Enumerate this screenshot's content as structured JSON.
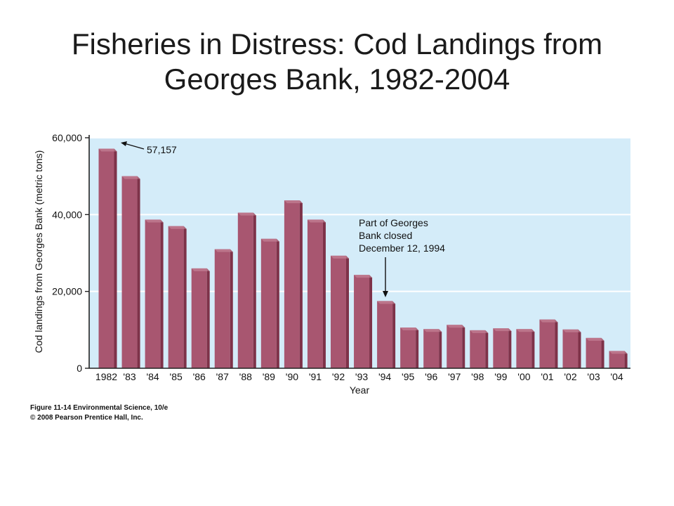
{
  "title_lines": [
    "Fisheries in Distress: Cod Landings from",
    "Georges Bank, 1982-2004"
  ],
  "chart_data": {
    "type": "bar",
    "categories": [
      "1982",
      "'83",
      "'84",
      "'85",
      "'86",
      "'87",
      "'88",
      "'89",
      "'90",
      "'91",
      "'92",
      "'93",
      "'94",
      "'95",
      "'96",
      "'97",
      "'98",
      "'99",
      "'00",
      "'01",
      "'02",
      "'03",
      "'04"
    ],
    "values": [
      57157,
      50000,
      38700,
      37000,
      26000,
      31000,
      40500,
      33700,
      43700,
      38700,
      29300,
      24300,
      17500,
      10600,
      10200,
      11300,
      9900,
      10400,
      10200,
      12700,
      10100,
      7900,
      4500
    ],
    "xlabel": "Year",
    "ylabel": "Cod landings from Georges Bank (metric tons)",
    "ylim": [
      0,
      60000
    ],
    "yticks": [
      0,
      20000,
      40000,
      60000
    ],
    "ytick_labels": [
      "0",
      "20,000",
      "40,000",
      "60,000"
    ],
    "grid": true,
    "annotations": [
      {
        "label": "57,157",
        "target": "1982"
      },
      {
        "label_lines": [
          "Part of Georges",
          "Bank closed",
          "December 12, 1994"
        ],
        "target": "'94"
      }
    ],
    "colors": {
      "bar": "#a85670",
      "bar_side": "#7e3249",
      "bar_top": "#c98a9c",
      "plot_bg": "#d4ecf9",
      "grid": "#ffffff",
      "axis": "#222222"
    }
  },
  "credit_lines": [
    "Figure 11-14  Environmental Science, 10/e",
    "© 2008 Pearson Prentice Hall, Inc."
  ]
}
